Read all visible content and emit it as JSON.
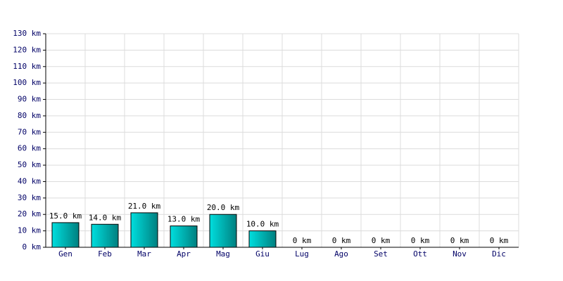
{
  "chart_data": {
    "type": "bar",
    "categories": [
      "Gen",
      "Feb",
      "Mar",
      "Apr",
      "Mag",
      "Giu",
      "Lug",
      "Ago",
      "Set",
      "Ott",
      "Nov",
      "Dic"
    ],
    "values": [
      15,
      14,
      21,
      13,
      20,
      10,
      0,
      0,
      0,
      0,
      0,
      0
    ],
    "value_labels": [
      "15.0 km",
      "14.0 km",
      "21.0 km",
      "13.0 km",
      "20.0 km",
      "10.0 km",
      "0 km",
      "0 km",
      "0 km",
      "0 km",
      "0 km",
      "0 km"
    ],
    "color": "#00dede",
    "ylim": [
      0,
      130
    ],
    "yticks": [
      {
        "value": 0,
        "label": "0 km"
      },
      {
        "value": 10,
        "label": "10 km"
      },
      {
        "value": 20,
        "label": "20 km"
      },
      {
        "value": 30,
        "label": "30 km"
      },
      {
        "value": 40,
        "label": "40 km"
      },
      {
        "value": 50,
        "label": "50 km"
      },
      {
        "value": 60,
        "label": "60 km"
      },
      {
        "value": 70,
        "label": "70 km"
      },
      {
        "value": 80,
        "label": "80 km"
      },
      {
        "value": 90,
        "label": "90 km"
      },
      {
        "value": 100,
        "label": "100 km"
      },
      {
        "value": 110,
        "label": "110 km"
      },
      {
        "value": 120,
        "label": "120 km"
      },
      {
        "value": 130,
        "label": "130 km"
      }
    ],
    "grid": true
  }
}
